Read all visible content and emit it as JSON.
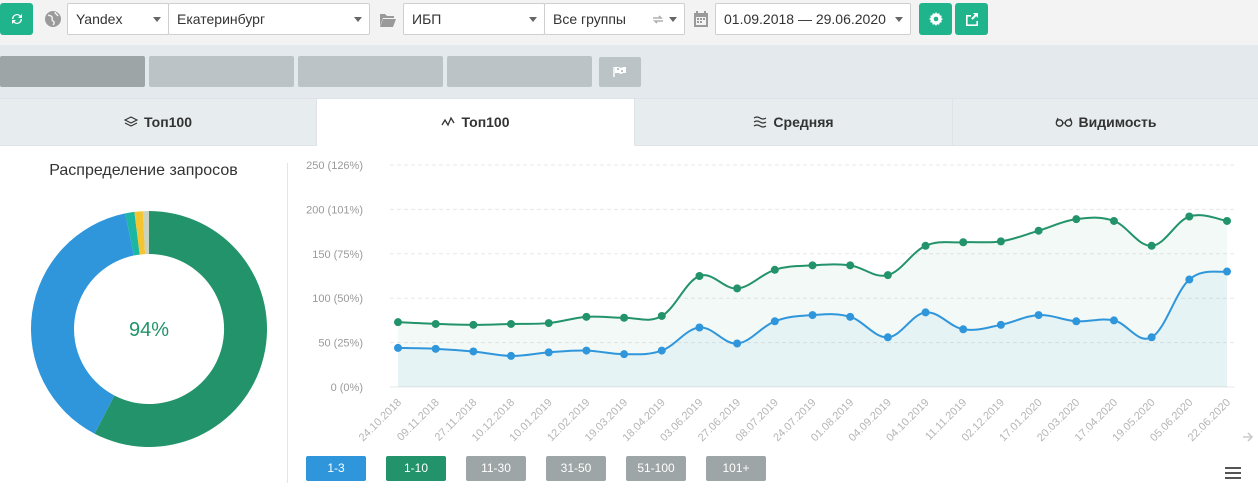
{
  "toolbar": {
    "search_engine": "Yandex",
    "region": "Екатеринбург",
    "project": "ИБП",
    "group": "Все группы",
    "date_range": "01.09.2018 — 29.06.2020"
  },
  "tabs": [
    {
      "label": "Топ100",
      "icon": "layers-icon"
    },
    {
      "label": "Топ100",
      "icon": "line-chart-icon"
    },
    {
      "label": "Средняя",
      "icon": "waves-icon"
    },
    {
      "label": "Видимость",
      "icon": "glasses-icon"
    }
  ],
  "donut": {
    "title": "Распределение запросов",
    "center_label": "94%"
  },
  "legend": [
    {
      "label": "1-3",
      "color": "#2f96dc"
    },
    {
      "label": "1-10",
      "color": "#22936a"
    },
    {
      "label": "11-30",
      "color": "#9ea5a7"
    },
    {
      "label": "31-50",
      "color": "#9ea5a7"
    },
    {
      "label": "51-100",
      "color": "#9ea5a7"
    },
    {
      "label": "101+",
      "color": "#9ea5a7"
    }
  ],
  "chart_data": {
    "type": "line",
    "x": [
      "24.10.2018",
      "09.11.2018",
      "27.11.2018",
      "10.12.2018",
      "10.01.2019",
      "12.02.2019",
      "19.03.2019",
      "18.04.2019",
      "03.06.2019",
      "27.06.2019",
      "08.07.2019",
      "24.07.2019",
      "01.08.2019",
      "04.09.2019",
      "04.10.2019",
      "11.11.2019",
      "02.12.2019",
      "17.01.2020",
      "20.03.2020",
      "17.04.2020",
      "19.05.2020",
      "05.06.2020",
      "22.06.2020"
    ],
    "yticks": [
      "0 (0%)",
      "50 (25%)",
      "100 (50%)",
      "150 (75%)",
      "200 (101%)",
      "250 (126%)"
    ],
    "ylim": [
      0,
      250
    ],
    "series": [
      {
        "color": "#22936a",
        "values": [
          73,
          71,
          70,
          71,
          72,
          79,
          78,
          80,
          125,
          111,
          132,
          137,
          137,
          126,
          159,
          163,
          164,
          176,
          189,
          187,
          159,
          192,
          187
        ]
      },
      {
        "color": "#2f96dc",
        "values": [
          44,
          43,
          40,
          35,
          39,
          41,
          37,
          41,
          67,
          49,
          74,
          81,
          79,
          56,
          84,
          65,
          70,
          81,
          74,
          75,
          56,
          121,
          130
        ]
      }
    ],
    "grid": true
  }
}
